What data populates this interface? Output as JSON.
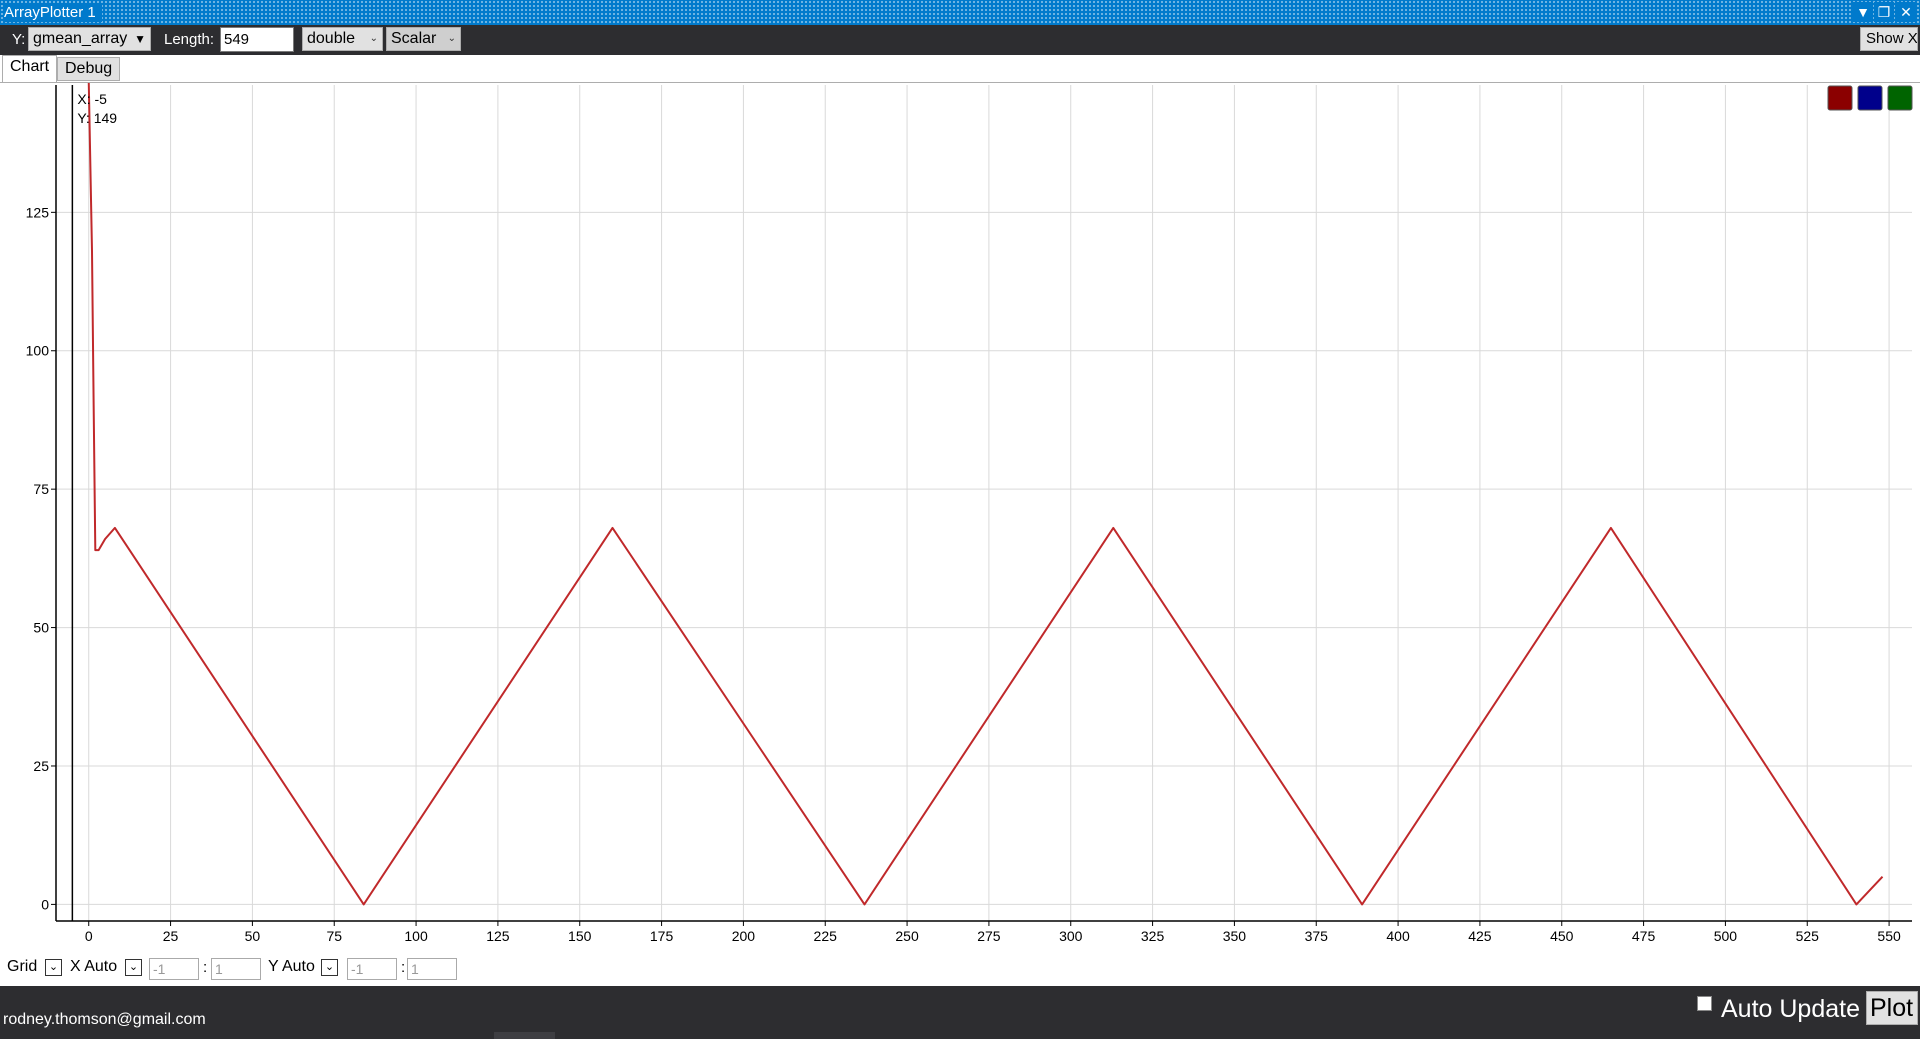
{
  "window": {
    "title": "ArrayPlotter 1"
  },
  "toolbar": {
    "y_label": "Y:",
    "y_variable": "gmean_array",
    "length_label": "Length:",
    "length_value": "549",
    "type_value": "double",
    "mode_value": "Scalar",
    "show_x_label": "Show X"
  },
  "tabs": [
    {
      "label": "Chart",
      "active": true
    },
    {
      "label": "Debug",
      "active": false
    }
  ],
  "chart_data": {
    "type": "line",
    "title": "",
    "xlabel": "",
    "ylabel": "",
    "xlim": [
      -10,
      557
    ],
    "ylim": [
      -3,
      148
    ],
    "grid": true,
    "x_ticks": [
      0,
      25,
      50,
      75,
      100,
      125,
      150,
      175,
      200,
      225,
      250,
      275,
      300,
      325,
      350,
      375,
      400,
      425,
      450,
      475,
      500,
      525,
      550
    ],
    "y_ticks": [
      0,
      25,
      50,
      75,
      100,
      125
    ],
    "cursor_line_x": -5,
    "tooltip": {
      "x_label": "X: -5",
      "y_label": "Y: 149"
    },
    "series": [
      {
        "color": "#c0292b",
        "points": [
          [
            0,
            149
          ],
          [
            1,
            118
          ],
          [
            1.5,
            91
          ],
          [
            2,
            64
          ],
          [
            3,
            64
          ],
          [
            5,
            66
          ],
          [
            8,
            68
          ],
          [
            84,
            0
          ],
          [
            160,
            68
          ],
          [
            237,
            0
          ],
          [
            313,
            68
          ],
          [
            389,
            0
          ],
          [
            465,
            68
          ],
          [
            540,
            0
          ],
          [
            548,
            5
          ]
        ]
      }
    ],
    "series_color_buttons": [
      "#8b0000",
      "#00008b",
      "#006400"
    ]
  },
  "controls": {
    "grid_label": "Grid",
    "x_auto_label": "X Auto",
    "x_min": "-1",
    "x_max": "1",
    "y_auto_label": "Y Auto",
    "y_min": "-1",
    "y_max": "1",
    "colon": ":"
  },
  "status": {
    "email": "rodney.thomson@gmail.com",
    "auto_update_label": "Auto Update",
    "plot_label": "Plot"
  }
}
